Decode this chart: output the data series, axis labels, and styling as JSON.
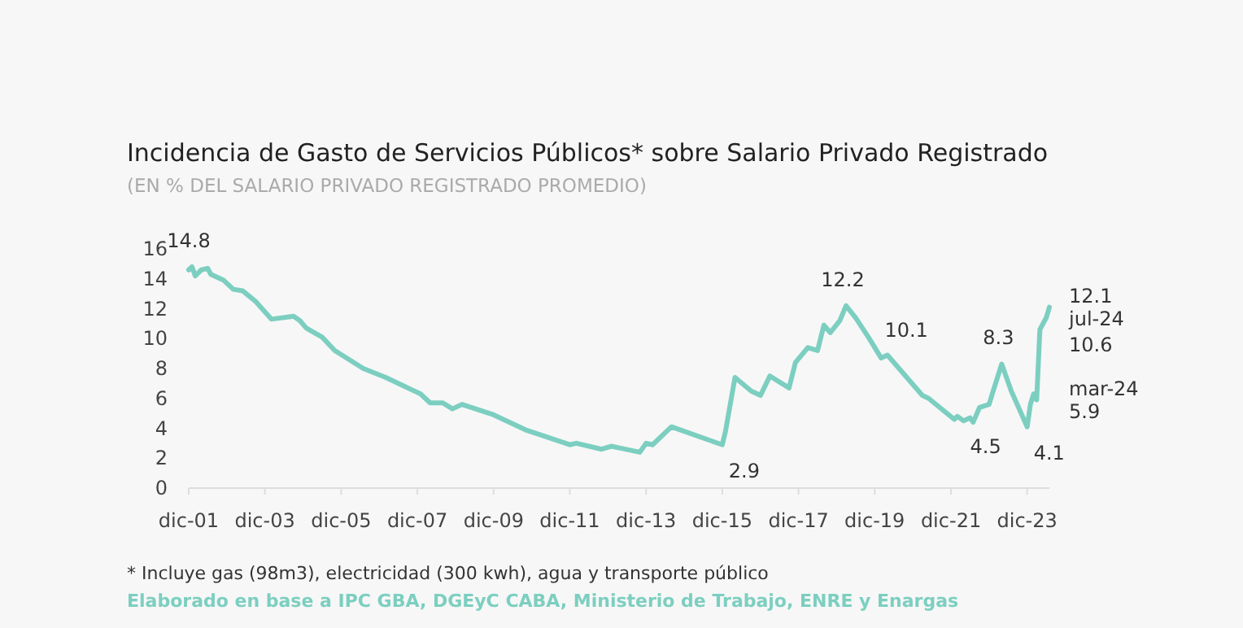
{
  "chart_data": {
    "type": "line",
    "title": "Incidencia de Gasto de Servicios Públicos* sobre Salario Privado Registrado",
    "subtitle": "(EN % DEL SALARIO PRIVADO REGISTRADO PROMEDIO)",
    "x": [
      "2001-12",
      "2002-01",
      "2002-02",
      "2002-04",
      "2002-06",
      "2002-07",
      "2002-11",
      "2003-02",
      "2003-05",
      "2003-09",
      "2004-02",
      "2004-09",
      "2004-11",
      "2005-01",
      "2005-06",
      "2005-10",
      "2006-07",
      "2007-02",
      "2007-08",
      "2008-01",
      "2008-04",
      "2008-08",
      "2008-11",
      "2009-02",
      "2009-12",
      "2010-10",
      "2011-12",
      "2012-02",
      "2012-10",
      "2013-01",
      "2013-10",
      "2013-12",
      "2014-02",
      "2014-08",
      "2015-12",
      "2016-01",
      "2016-04",
      "2016-09",
      "2016-12",
      "2017-03",
      "2017-09",
      "2017-11",
      "2018-03",
      "2018-06",
      "2018-08",
      "2018-10",
      "2019-01",
      "2019-03",
      "2019-06",
      "2019-10",
      "2020-02",
      "2020-04",
      "2021-03",
      "2021-05",
      "2022-01",
      "2022-02",
      "2022-04",
      "2022-06",
      "2022-07",
      "2022-09",
      "2022-12",
      "2023-01",
      "2023-04",
      "2023-07",
      "2023-12",
      "2024-01",
      "2024-02",
      "2024-03",
      "2024-04",
      "2024-05",
      "2024-06",
      "2024-07"
    ],
    "series": [
      {
        "color": "#7ccfc0",
        "values": [
          14.6,
          14.8,
          14.2,
          14.6,
          14.7,
          14.3,
          13.9,
          13.3,
          13.2,
          12.5,
          11.3,
          11.5,
          11.2,
          10.7,
          10.1,
          9.2,
          8.0,
          7.4,
          6.8,
          6.3,
          5.7,
          5.7,
          5.3,
          5.6,
          4.9,
          3.9,
          2.9,
          3.0,
          2.6,
          2.8,
          2.4,
          3.0,
          2.9,
          4.1,
          2.9,
          3.8,
          7.4,
          6.5,
          6.2,
          7.5,
          6.7,
          8.4,
          9.4,
          9.2,
          10.9,
          10.4,
          11.2,
          12.2,
          11.4,
          10.1,
          8.7,
          8.9,
          6.2,
          6.0,
          4.6,
          4.8,
          4.5,
          4.7,
          4.4,
          5.4,
          5.6,
          6.3,
          8.3,
          6.5,
          4.1,
          5.6,
          6.3,
          5.9,
          10.6,
          11.0,
          11.4,
          12.1
        ]
      }
    ],
    "xlim": [
      "2001-12",
      "2024-07"
    ],
    "xticks": [
      {
        "value": "2001-12",
        "label": "dic-01"
      },
      {
        "value": "2003-12",
        "label": "dic-03"
      },
      {
        "value": "2005-12",
        "label": "dic-05"
      },
      {
        "value": "2007-12",
        "label": "dic-07"
      },
      {
        "value": "2009-12",
        "label": "dic-09"
      },
      {
        "value": "2011-12",
        "label": "dic-11"
      },
      {
        "value": "2013-12",
        "label": "dic-13"
      },
      {
        "value": "2015-12",
        "label": "dic-15"
      },
      {
        "value": "2017-12",
        "label": "dic-17"
      },
      {
        "value": "2019-12",
        "label": "dic-19"
      },
      {
        "value": "2021-12",
        "label": "dic-21"
      },
      {
        "value": "2023-12",
        "label": "dic-23"
      }
    ],
    "ylim": [
      0,
      16
    ],
    "yticks": [
      0,
      2,
      4,
      6,
      8,
      10,
      12,
      14,
      16
    ],
    "annotations": [
      {
        "text": "14.8",
        "x": "2002-01",
        "y": 14.8
      },
      {
        "text": "12.2",
        "x": "2019-03",
        "y": 12.2
      },
      {
        "text": "10.1",
        "x": "2019-10",
        "y": 10.1
      },
      {
        "text": "2.9",
        "x": "2015-12",
        "y": 2.9
      },
      {
        "text": "4.5",
        "x": "2022-04",
        "y": 4.5
      },
      {
        "text": "8.3",
        "x": "2023-04",
        "y": 8.3
      },
      {
        "text": "4.1",
        "x": "2023-12",
        "y": 4.1
      },
      {
        "text": "mar-24\n5.9",
        "x": "2024-03",
        "y": 5.9
      },
      {
        "text": "10.6",
        "x": "2024-04",
        "y": 10.6
      },
      {
        "text": "12.1\njul-24",
        "x": "2024-07",
        "y": 12.1
      },
      "* Incluye gas (98m3), electricidad (300 kwh), agua y transporte público",
      "Elaborado en base a IPC GBA, DGEyC CABA, Ministerio de Trabajo, ENRE y Enargas"
    ]
  }
}
